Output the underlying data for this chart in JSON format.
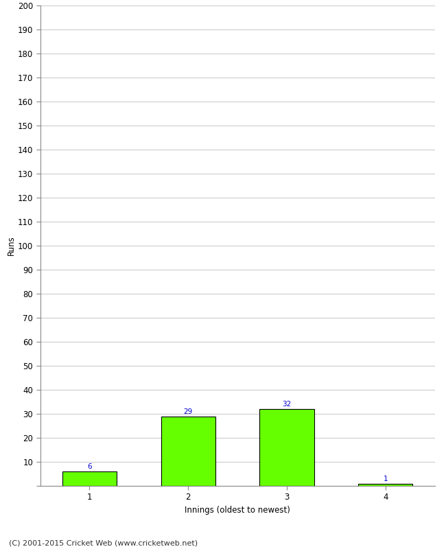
{
  "categories": [
    "1",
    "2",
    "3",
    "4"
  ],
  "values": [
    6,
    29,
    32,
    1
  ],
  "bar_colors": [
    "#66ff00",
    "#66ff00",
    "#66ff00",
    "#66ff00"
  ],
  "bar_edge_colors": [
    "#000000",
    "#000000",
    "#000000",
    "#000000"
  ],
  "ylabel": "Runs",
  "xlabel": "Innings (oldest to newest)",
  "ylim": [
    0,
    200
  ],
  "yticks": [
    0,
    10,
    20,
    30,
    40,
    50,
    60,
    70,
    80,
    90,
    100,
    110,
    120,
    130,
    140,
    150,
    160,
    170,
    180,
    190,
    200
  ],
  "value_label_color": "#0000cc",
  "value_label_fontsize": 7.5,
  "tick_label_fontsize": 8.5,
  "axis_label_fontsize": 8.5,
  "footer_text": "(C) 2001-2015 Cricket Web (www.cricketweb.net)",
  "footer_fontsize": 8,
  "background_color": "#ffffff",
  "grid_color": "#cccccc",
  "bar_width": 0.55
}
